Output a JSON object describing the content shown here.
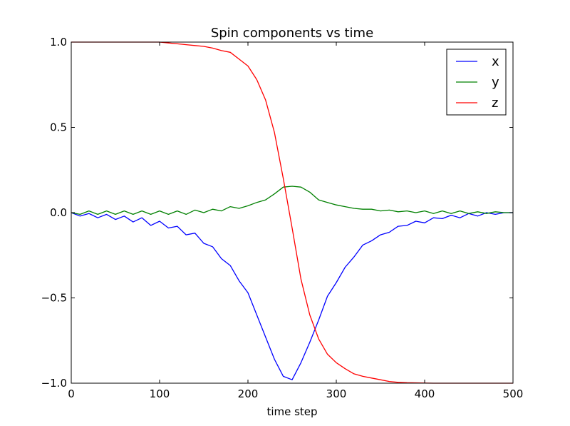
{
  "chart_data": {
    "type": "line",
    "title": "Spin components vs time",
    "xlabel": "time step",
    "ylabel": "",
    "xlim": [
      0,
      500
    ],
    "ylim": [
      -1.0,
      1.0
    ],
    "x_ticks": [
      0,
      100,
      200,
      300,
      400,
      500
    ],
    "x_tick_labels": [
      "0",
      "100",
      "200",
      "300",
      "400",
      "500"
    ],
    "y_ticks": [
      -1.0,
      -0.5,
      0.0,
      0.5,
      1.0
    ],
    "y_tick_labels": [
      "−1.0",
      "−0.5",
      "0.0",
      "0.5",
      "1.0"
    ],
    "legend_position": "top-right",
    "grid": false,
    "x": [
      0,
      10,
      20,
      30,
      40,
      50,
      60,
      70,
      80,
      90,
      100,
      110,
      120,
      130,
      140,
      150,
      160,
      170,
      180,
      190,
      200,
      210,
      220,
      230,
      240,
      250,
      260,
      270,
      280,
      290,
      300,
      310,
      320,
      330,
      340,
      350,
      360,
      370,
      380,
      390,
      400,
      410,
      420,
      430,
      440,
      450,
      460,
      470,
      480,
      490,
      500
    ],
    "series": [
      {
        "name": "x",
        "color": "#0000ff",
        "values": [
          0.0,
          -0.02,
          -0.005,
          -0.03,
          -0.01,
          -0.04,
          -0.02,
          -0.055,
          -0.03,
          -0.075,
          -0.05,
          -0.09,
          -0.08,
          -0.13,
          -0.12,
          -0.18,
          -0.2,
          -0.27,
          -0.31,
          -0.4,
          -0.47,
          -0.6,
          -0.73,
          -0.86,
          -0.96,
          -0.98,
          -0.88,
          -0.76,
          -0.63,
          -0.49,
          -0.41,
          -0.32,
          -0.26,
          -0.19,
          -0.165,
          -0.13,
          -0.115,
          -0.08,
          -0.075,
          -0.05,
          -0.06,
          -0.03,
          -0.035,
          -0.015,
          -0.03,
          -0.005,
          -0.02,
          0.0,
          -0.01,
          0.0,
          0.0
        ]
      },
      {
        "name": "y",
        "color": "#008000",
        "values": [
          0.0,
          -0.01,
          0.01,
          -0.01,
          0.01,
          -0.01,
          0.01,
          -0.01,
          0.01,
          -0.01,
          0.01,
          -0.01,
          0.01,
          -0.01,
          0.015,
          0.0,
          0.02,
          0.01,
          0.035,
          0.025,
          0.04,
          0.06,
          0.075,
          0.11,
          0.15,
          0.155,
          0.15,
          0.12,
          0.075,
          0.06,
          0.045,
          0.035,
          0.025,
          0.02,
          0.02,
          0.01,
          0.015,
          0.005,
          0.01,
          0.0,
          0.01,
          -0.005,
          0.01,
          -0.005,
          0.01,
          -0.005,
          0.005,
          -0.005,
          0.005,
          0.0,
          0.0
        ]
      },
      {
        "name": "z",
        "color": "#ff0000",
        "values": [
          1.0,
          1.0,
          1.0,
          1.0,
          1.0,
          1.0,
          1.0,
          1.0,
          1.0,
          1.0,
          1.0,
          0.995,
          0.99,
          0.985,
          0.98,
          0.975,
          0.965,
          0.95,
          0.94,
          0.9,
          0.86,
          0.78,
          0.66,
          0.47,
          0.2,
          -0.09,
          -0.39,
          -0.6,
          -0.74,
          -0.83,
          -0.88,
          -0.915,
          -0.945,
          -0.96,
          -0.97,
          -0.98,
          -0.99,
          -0.995,
          -0.997,
          -0.998,
          -0.999,
          -1.0,
          -1.0,
          -1.0,
          -1.0,
          -1.0,
          -1.0,
          -1.0,
          -1.0,
          -1.0,
          -1.0
        ]
      }
    ]
  }
}
